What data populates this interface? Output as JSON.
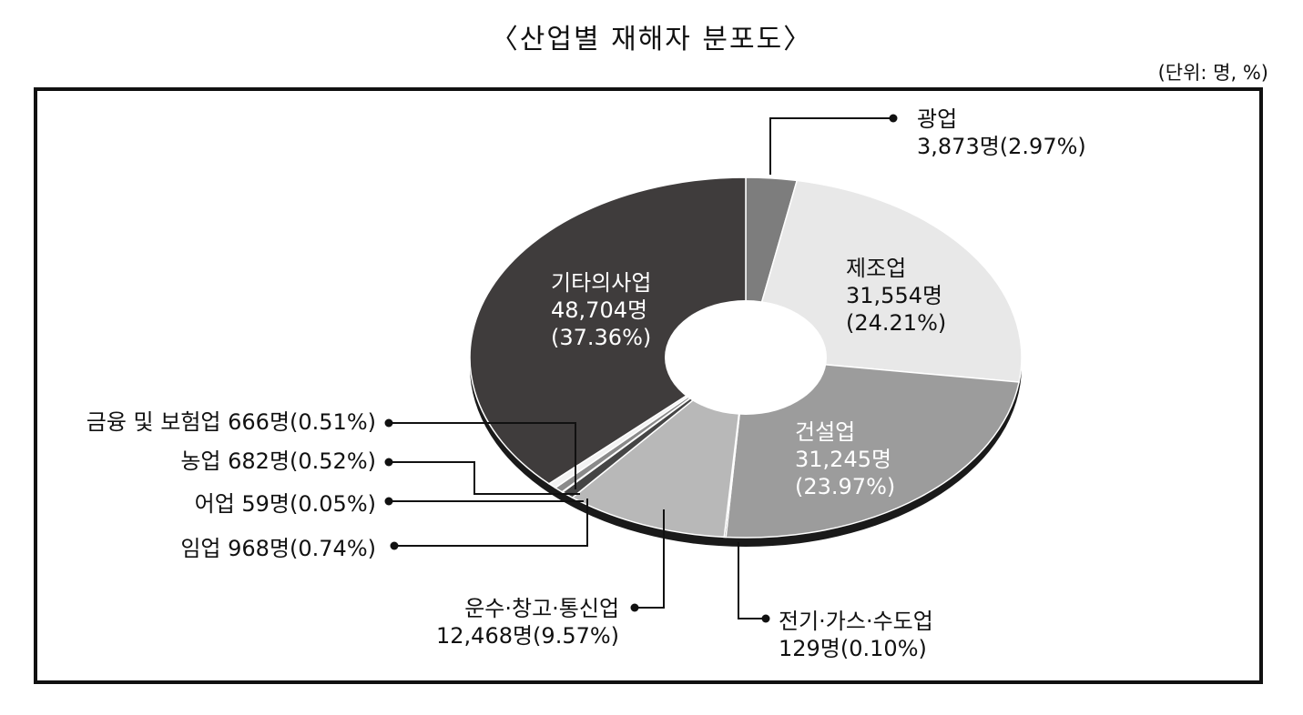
{
  "title": "〈산업별 재해자 분포도〉",
  "unit": "(단위: 명, %)",
  "chart_data": {
    "type": "pie",
    "title": "〈산업별 재해자 분포도〉",
    "unit": "(단위: 명, %)",
    "donut": true,
    "slices": [
      {
        "name": "광업",
        "value": 3873,
        "percent": 2.97,
        "count_text": "3,873명(2.97%)",
        "color": "#7d7d7d"
      },
      {
        "name": "제조업",
        "value": 31554,
        "percent": 24.21,
        "count_text": "31,554명",
        "percent_text": "(24.21%)",
        "color": "#e8e8e8"
      },
      {
        "name": "건설업",
        "value": 31245,
        "percent": 23.97,
        "count_text": "31,245명",
        "percent_text": "(23.97%)",
        "color": "#9c9c9c"
      },
      {
        "name": "전기·가스·수도업",
        "value": 129,
        "percent": 0.1,
        "count_text": "129명(0.10%)",
        "color": "#5a5a5a"
      },
      {
        "name": "운수·창고·통신업",
        "value": 12468,
        "percent": 9.57,
        "count_text": "12,468명(9.57%)",
        "color": "#b8b8b8"
      },
      {
        "name": "임업",
        "value": 968,
        "percent": 0.74,
        "text": "임업 968명(0.74%)",
        "color": "#454545"
      },
      {
        "name": "어업",
        "value": 59,
        "percent": 0.05,
        "text": "어업 59명(0.05%)",
        "color": "#2a2a2a"
      },
      {
        "name": "농업",
        "value": 682,
        "percent": 0.52,
        "text": "농업 682명(0.52%)",
        "color": "#8a8a8a"
      },
      {
        "name": "금융 및 보험업",
        "value": 666,
        "percent": 0.51,
        "text": "금융 및 보험업 666명(0.51%)",
        "color": "#f2f2f2"
      },
      {
        "name": "기타의사업",
        "value": 48704,
        "percent": 37.36,
        "count_text": "48,704명",
        "percent_text": "(37.36%)",
        "color": "#3f3c3c"
      }
    ]
  }
}
